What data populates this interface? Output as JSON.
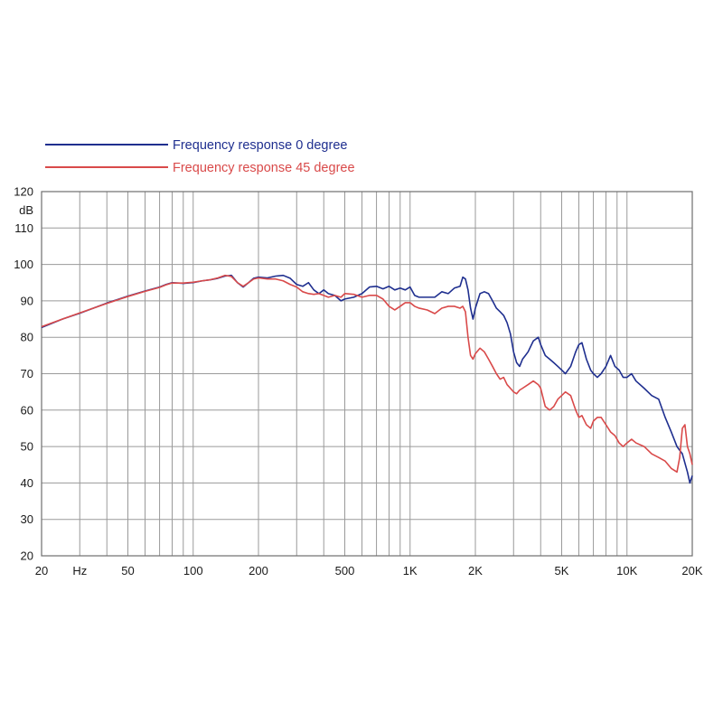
{
  "chart_data": {
    "type": "line",
    "xscale": "log",
    "xlim": [
      20,
      20000
    ],
    "ylim": [
      20,
      120
    ],
    "grid": true,
    "legend_placement": "top-left",
    "y_unit_label": "dB",
    "x_unit_label": "Hz",
    "x_ticks": [
      {
        "value": 20,
        "label": "20"
      },
      {
        "value": 30,
        "label": "Hz"
      },
      {
        "value": 50,
        "label": "50"
      },
      {
        "value": 100,
        "label": "100"
      },
      {
        "value": 200,
        "label": "200"
      },
      {
        "value": 500,
        "label": "500"
      },
      {
        "value": 1000,
        "label": "1K"
      },
      {
        "value": 2000,
        "label": "2K"
      },
      {
        "value": 5000,
        "label": "5K"
      },
      {
        "value": 10000,
        "label": "10K"
      },
      {
        "value": 20000,
        "label": "20K"
      }
    ],
    "x_grid": [
      20,
      30,
      40,
      50,
      60,
      70,
      80,
      90,
      100,
      200,
      300,
      400,
      500,
      600,
      700,
      800,
      900,
      1000,
      2000,
      3000,
      4000,
      5000,
      6000,
      7000,
      8000,
      9000,
      10000,
      20000
    ],
    "y_ticks": [
      {
        "value": 20,
        "label": "20"
      },
      {
        "value": 30,
        "label": "30"
      },
      {
        "value": 40,
        "label": "40"
      },
      {
        "value": 50,
        "label": "50"
      },
      {
        "value": 60,
        "label": "60"
      },
      {
        "value": 70,
        "label": "70"
      },
      {
        "value": 80,
        "label": "80"
      },
      {
        "value": 90,
        "label": "90"
      },
      {
        "value": 100,
        "label": "100"
      },
      {
        "value": 110,
        "label": "110"
      },
      {
        "value": 120,
        "label": "120"
      }
    ],
    "series": [
      {
        "name": "Frequency response 0 degree",
        "color": "#1f2f8f",
        "points": [
          [
            20,
            82.7
          ],
          [
            25,
            85
          ],
          [
            30,
            86.6
          ],
          [
            40,
            89.4
          ],
          [
            50,
            91.3
          ],
          [
            60,
            92.7
          ],
          [
            70,
            93.8
          ],
          [
            75,
            94.5
          ],
          [
            80,
            95.0
          ],
          [
            90,
            94.8
          ],
          [
            100,
            95.0
          ],
          [
            110,
            95.5
          ],
          [
            120,
            95.8
          ],
          [
            130,
            96.2
          ],
          [
            140,
            96.8
          ],
          [
            150,
            97.0
          ],
          [
            160,
            95.0
          ],
          [
            170,
            93.8
          ],
          [
            180,
            95.0
          ],
          [
            190,
            96.2
          ],
          [
            200,
            96.5
          ],
          [
            220,
            96.3
          ],
          [
            240,
            96.8
          ],
          [
            260,
            97.0
          ],
          [
            280,
            96.2
          ],
          [
            300,
            94.5
          ],
          [
            320,
            94.0
          ],
          [
            340,
            95.0
          ],
          [
            360,
            93.0
          ],
          [
            380,
            92.0
          ],
          [
            400,
            93.0
          ],
          [
            420,
            92.0
          ],
          [
            450,
            91.5
          ],
          [
            480,
            90.0
          ],
          [
            500,
            90.5
          ],
          [
            550,
            91.0
          ],
          [
            600,
            92.0
          ],
          [
            650,
            93.8
          ],
          [
            700,
            94.0
          ],
          [
            750,
            93.3
          ],
          [
            800,
            94.0
          ],
          [
            850,
            93.0
          ],
          [
            900,
            93.5
          ],
          [
            950,
            93.0
          ],
          [
            1000,
            93.8
          ],
          [
            1050,
            91.5
          ],
          [
            1100,
            91.0
          ],
          [
            1200,
            91.0
          ],
          [
            1300,
            91.0
          ],
          [
            1400,
            92.5
          ],
          [
            1500,
            92.0
          ],
          [
            1600,
            93.5
          ],
          [
            1700,
            94.0
          ],
          [
            1750,
            96.5
          ],
          [
            1800,
            96.0
          ],
          [
            1850,
            93.0
          ],
          [
            1900,
            88.0
          ],
          [
            1950,
            85.0
          ],
          [
            2000,
            88.0
          ],
          [
            2100,
            92.0
          ],
          [
            2200,
            92.5
          ],
          [
            2300,
            92.0
          ],
          [
            2400,
            90.0
          ],
          [
            2500,
            88.0
          ],
          [
            2600,
            87.0
          ],
          [
            2700,
            86.0
          ],
          [
            2800,
            84.0
          ],
          [
            2900,
            81.0
          ],
          [
            3000,
            76.0
          ],
          [
            3100,
            73.0
          ],
          [
            3200,
            72.0
          ],
          [
            3300,
            74.0
          ],
          [
            3400,
            75.0
          ],
          [
            3500,
            76.0
          ],
          [
            3700,
            79.0
          ],
          [
            3900,
            80.0
          ],
          [
            4000,
            78.0
          ],
          [
            4200,
            75.0
          ],
          [
            4400,
            74.0
          ],
          [
            4600,
            73.0
          ],
          [
            4800,
            72.0
          ],
          [
            5000,
            71.0
          ],
          [
            5200,
            70.0
          ],
          [
            5500,
            72.0
          ],
          [
            5800,
            76.0
          ],
          [
            6000,
            78.0
          ],
          [
            6200,
            78.5
          ],
          [
            6500,
            74.0
          ],
          [
            6800,
            71.0
          ],
          [
            7000,
            70.0
          ],
          [
            7300,
            69.0
          ],
          [
            7600,
            70.0
          ],
          [
            8000,
            72.0
          ],
          [
            8400,
            75.0
          ],
          [
            8800,
            72.0
          ],
          [
            9200,
            71.0
          ],
          [
            9600,
            69.0
          ],
          [
            10000,
            69.0
          ],
          [
            10500,
            70.0
          ],
          [
            11000,
            68.0
          ],
          [
            12000,
            66.0
          ],
          [
            13000,
            64.0
          ],
          [
            14000,
            63.0
          ],
          [
            15000,
            58.0
          ],
          [
            16000,
            54.0
          ],
          [
            17000,
            50.0
          ],
          [
            18000,
            48.0
          ],
          [
            19000,
            43.0
          ],
          [
            19500,
            40.0
          ],
          [
            20000,
            42.0
          ]
        ]
      },
      {
        "name": "Frequency response 45 degree",
        "color": "#d94a4a",
        "points": [
          [
            20,
            82.9
          ],
          [
            25,
            85
          ],
          [
            30,
            86.7
          ],
          [
            40,
            89.3
          ],
          [
            50,
            91.2
          ],
          [
            60,
            92.6
          ],
          [
            70,
            93.7
          ],
          [
            75,
            94.4
          ],
          [
            80,
            94.9
          ],
          [
            90,
            94.9
          ],
          [
            100,
            95.1
          ],
          [
            110,
            95.5
          ],
          [
            120,
            95.8
          ],
          [
            130,
            96.3
          ],
          [
            140,
            97.0
          ],
          [
            150,
            96.7
          ],
          [
            160,
            95.0
          ],
          [
            170,
            94.0
          ],
          [
            180,
            95.0
          ],
          [
            190,
            96.0
          ],
          [
            200,
            96.3
          ],
          [
            220,
            96.0
          ],
          [
            240,
            96.0
          ],
          [
            260,
            95.5
          ],
          [
            280,
            94.5
          ],
          [
            300,
            93.8
          ],
          [
            320,
            92.5
          ],
          [
            340,
            92.0
          ],
          [
            360,
            91.8
          ],
          [
            380,
            92.0
          ],
          [
            400,
            91.5
          ],
          [
            420,
            91.0
          ],
          [
            450,
            91.5
          ],
          [
            480,
            91.0
          ],
          [
            500,
            92.0
          ],
          [
            550,
            91.8
          ],
          [
            600,
            91.0
          ],
          [
            650,
            91.5
          ],
          [
            700,
            91.5
          ],
          [
            750,
            90.5
          ],
          [
            800,
            88.5
          ],
          [
            850,
            87.5
          ],
          [
            900,
            88.5
          ],
          [
            950,
            89.5
          ],
          [
            1000,
            89.5
          ],
          [
            1050,
            88.5
          ],
          [
            1100,
            88.0
          ],
          [
            1200,
            87.5
          ],
          [
            1300,
            86.5
          ],
          [
            1400,
            88.0
          ],
          [
            1500,
            88.5
          ],
          [
            1600,
            88.5
          ],
          [
            1700,
            88.0
          ],
          [
            1750,
            88.5
          ],
          [
            1800,
            87.0
          ],
          [
            1850,
            80.0
          ],
          [
            1900,
            75.0
          ],
          [
            1950,
            74.0
          ],
          [
            2000,
            75.5
          ],
          [
            2100,
            77.0
          ],
          [
            2200,
            76.0
          ],
          [
            2300,
            74.0
          ],
          [
            2400,
            72.0
          ],
          [
            2500,
            70.0
          ],
          [
            2600,
            68.5
          ],
          [
            2700,
            69.0
          ],
          [
            2800,
            67.0
          ],
          [
            2900,
            66.0
          ],
          [
            3000,
            65.0
          ],
          [
            3100,
            64.5
          ],
          [
            3200,
            65.5
          ],
          [
            3300,
            66.0
          ],
          [
            3500,
            67.0
          ],
          [
            3700,
            68.0
          ],
          [
            3900,
            67.0
          ],
          [
            4000,
            66.0
          ],
          [
            4200,
            61.0
          ],
          [
            4400,
            60.0
          ],
          [
            4600,
            61.0
          ],
          [
            4800,
            63.0
          ],
          [
            5000,
            64.0
          ],
          [
            5200,
            65.0
          ],
          [
            5500,
            64.0
          ],
          [
            5800,
            60.0
          ],
          [
            6000,
            58.0
          ],
          [
            6200,
            58.5
          ],
          [
            6500,
            56.0
          ],
          [
            6800,
            55.0
          ],
          [
            7000,
            57.0
          ],
          [
            7300,
            58.0
          ],
          [
            7600,
            58.0
          ],
          [
            8000,
            56.0
          ],
          [
            8400,
            54.0
          ],
          [
            8800,
            53.0
          ],
          [
            9200,
            51.0
          ],
          [
            9600,
            50.0
          ],
          [
            10000,
            51.0
          ],
          [
            10500,
            52.0
          ],
          [
            11000,
            51.0
          ],
          [
            12000,
            50.0
          ],
          [
            13000,
            48.0
          ],
          [
            14000,
            47.0
          ],
          [
            15000,
            46.0
          ],
          [
            16000,
            44.0
          ],
          [
            17000,
            43.0
          ],
          [
            17500,
            47.0
          ],
          [
            18000,
            55.0
          ],
          [
            18500,
            56.0
          ],
          [
            19000,
            50.0
          ],
          [
            19500,
            48.0
          ],
          [
            20000,
            45.0
          ]
        ]
      }
    ]
  }
}
